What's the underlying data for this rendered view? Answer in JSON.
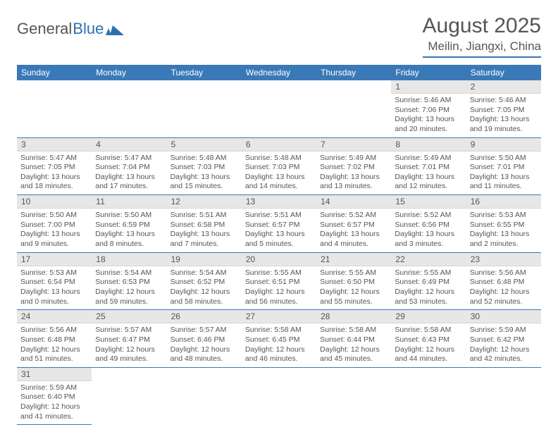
{
  "logo": {
    "part1": "General",
    "part2": "Blue"
  },
  "title": {
    "month": "August 2025",
    "location": "Meilin, Jiangxi, China"
  },
  "colors": {
    "header_bg": "#3a79b7",
    "header_text": "#ffffff",
    "daynum_bg": "#e7e7e7",
    "row_border": "#3a79b7",
    "text": "#555555"
  },
  "dayHeaders": [
    "Sunday",
    "Monday",
    "Tuesday",
    "Wednesday",
    "Thursday",
    "Friday",
    "Saturday"
  ],
  "days": [
    {
      "n": 1,
      "sunrise": "5:46 AM",
      "sunset": "7:06 PM",
      "daylight": "13 hours and 20 minutes."
    },
    {
      "n": 2,
      "sunrise": "5:46 AM",
      "sunset": "7:05 PM",
      "daylight": "13 hours and 19 minutes."
    },
    {
      "n": 3,
      "sunrise": "5:47 AM",
      "sunset": "7:05 PM",
      "daylight": "13 hours and 18 minutes."
    },
    {
      "n": 4,
      "sunrise": "5:47 AM",
      "sunset": "7:04 PM",
      "daylight": "13 hours and 17 minutes."
    },
    {
      "n": 5,
      "sunrise": "5:48 AM",
      "sunset": "7:03 PM",
      "daylight": "13 hours and 15 minutes."
    },
    {
      "n": 6,
      "sunrise": "5:48 AM",
      "sunset": "7:03 PM",
      "daylight": "13 hours and 14 minutes."
    },
    {
      "n": 7,
      "sunrise": "5:49 AM",
      "sunset": "7:02 PM",
      "daylight": "13 hours and 13 minutes."
    },
    {
      "n": 8,
      "sunrise": "5:49 AM",
      "sunset": "7:01 PM",
      "daylight": "13 hours and 12 minutes."
    },
    {
      "n": 9,
      "sunrise": "5:50 AM",
      "sunset": "7:01 PM",
      "daylight": "13 hours and 11 minutes."
    },
    {
      "n": 10,
      "sunrise": "5:50 AM",
      "sunset": "7:00 PM",
      "daylight": "13 hours and 9 minutes."
    },
    {
      "n": 11,
      "sunrise": "5:50 AM",
      "sunset": "6:59 PM",
      "daylight": "13 hours and 8 minutes."
    },
    {
      "n": 12,
      "sunrise": "5:51 AM",
      "sunset": "6:58 PM",
      "daylight": "13 hours and 7 minutes."
    },
    {
      "n": 13,
      "sunrise": "5:51 AM",
      "sunset": "6:57 PM",
      "daylight": "13 hours and 5 minutes."
    },
    {
      "n": 14,
      "sunrise": "5:52 AM",
      "sunset": "6:57 PM",
      "daylight": "13 hours and 4 minutes."
    },
    {
      "n": 15,
      "sunrise": "5:52 AM",
      "sunset": "6:56 PM",
      "daylight": "13 hours and 3 minutes."
    },
    {
      "n": 16,
      "sunrise": "5:53 AM",
      "sunset": "6:55 PM",
      "daylight": "13 hours and 2 minutes."
    },
    {
      "n": 17,
      "sunrise": "5:53 AM",
      "sunset": "6:54 PM",
      "daylight": "13 hours and 0 minutes."
    },
    {
      "n": 18,
      "sunrise": "5:54 AM",
      "sunset": "6:53 PM",
      "daylight": "12 hours and 59 minutes."
    },
    {
      "n": 19,
      "sunrise": "5:54 AM",
      "sunset": "6:52 PM",
      "daylight": "12 hours and 58 minutes."
    },
    {
      "n": 20,
      "sunrise": "5:55 AM",
      "sunset": "6:51 PM",
      "daylight": "12 hours and 56 minutes."
    },
    {
      "n": 21,
      "sunrise": "5:55 AM",
      "sunset": "6:50 PM",
      "daylight": "12 hours and 55 minutes."
    },
    {
      "n": 22,
      "sunrise": "5:55 AM",
      "sunset": "6:49 PM",
      "daylight": "12 hours and 53 minutes."
    },
    {
      "n": 23,
      "sunrise": "5:56 AM",
      "sunset": "6:48 PM",
      "daylight": "12 hours and 52 minutes."
    },
    {
      "n": 24,
      "sunrise": "5:56 AM",
      "sunset": "6:48 PM",
      "daylight": "12 hours and 51 minutes."
    },
    {
      "n": 25,
      "sunrise": "5:57 AM",
      "sunset": "6:47 PM",
      "daylight": "12 hours and 49 minutes."
    },
    {
      "n": 26,
      "sunrise": "5:57 AM",
      "sunset": "6:46 PM",
      "daylight": "12 hours and 48 minutes."
    },
    {
      "n": 27,
      "sunrise": "5:58 AM",
      "sunset": "6:45 PM",
      "daylight": "12 hours and 46 minutes."
    },
    {
      "n": 28,
      "sunrise": "5:58 AM",
      "sunset": "6:44 PM",
      "daylight": "12 hours and 45 minutes."
    },
    {
      "n": 29,
      "sunrise": "5:58 AM",
      "sunset": "6:43 PM",
      "daylight": "12 hours and 44 minutes."
    },
    {
      "n": 30,
      "sunrise": "5:59 AM",
      "sunset": "6:42 PM",
      "daylight": "12 hours and 42 minutes."
    },
    {
      "n": 31,
      "sunrise": "5:59 AM",
      "sunset": "6:40 PM",
      "daylight": "12 hours and 41 minutes."
    }
  ],
  "labels": {
    "sunrise": "Sunrise: ",
    "sunset": "Sunset: ",
    "daylight": "Daylight: "
  },
  "firstDayOffset": 5
}
